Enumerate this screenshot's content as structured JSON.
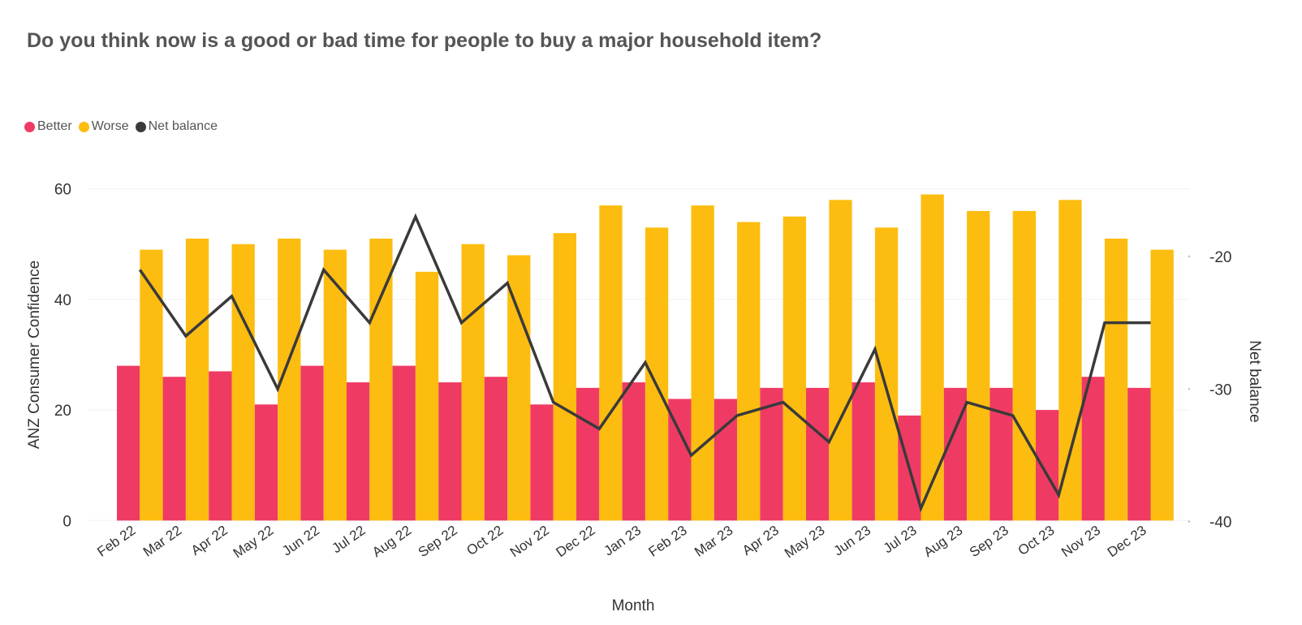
{
  "chart_data": {
    "type": "bar+line",
    "title": "Do you think now is a good or bad time for people to buy a major household item?",
    "xlabel": "Month",
    "ylabel": "ANZ Consumer Confidence",
    "y2label": "Net balance",
    "ylim": [
      0,
      60
    ],
    "yticks": [
      0,
      20,
      40,
      60
    ],
    "y2lim": [
      -40,
      -15
    ],
    "y2ticks": [
      -40,
      -30,
      -20
    ],
    "grid": true,
    "legend_position": "top-left",
    "categories": [
      "Feb 22",
      "Mar 22",
      "Apr 22",
      "May 22",
      "Jun 22",
      "Jul 22",
      "Aug 22",
      "Sep 22",
      "Oct 22",
      "Nov 22",
      "Dec 22",
      "Jan 23",
      "Feb 23",
      "Mar 23",
      "Apr 23",
      "May 23",
      "Jun 23",
      "Jul 23",
      "Aug 23",
      "Sep 23",
      "Oct 23",
      "Nov 23",
      "Dec 23"
    ],
    "series": [
      {
        "name": "Better",
        "type": "bar",
        "axis": "left",
        "color": "#EF3B64",
        "values": [
          28,
          26,
          27,
          21,
          28,
          25,
          28,
          25,
          26,
          21,
          24,
          25,
          22,
          22,
          24,
          24,
          25,
          19,
          24,
          24,
          20,
          26,
          24
        ]
      },
      {
        "name": "Worse",
        "type": "bar",
        "axis": "left",
        "color": "#FDBD10",
        "values": [
          49,
          51,
          50,
          51,
          49,
          51,
          45,
          50,
          48,
          52,
          57,
          53,
          57,
          54,
          55,
          58,
          53,
          59,
          56,
          56,
          58,
          51,
          49
        ]
      },
      {
        "name": "Net balance",
        "type": "line",
        "axis": "right",
        "color": "#3A3A3A",
        "values": [
          -21,
          -26,
          -23,
          -30,
          -21,
          -25,
          -17,
          -25,
          -22,
          -31,
          -33,
          -28,
          -35,
          -32,
          -31,
          -34,
          -27,
          -39,
          -31,
          -32,
          -38,
          -25,
          -25
        ]
      }
    ]
  }
}
